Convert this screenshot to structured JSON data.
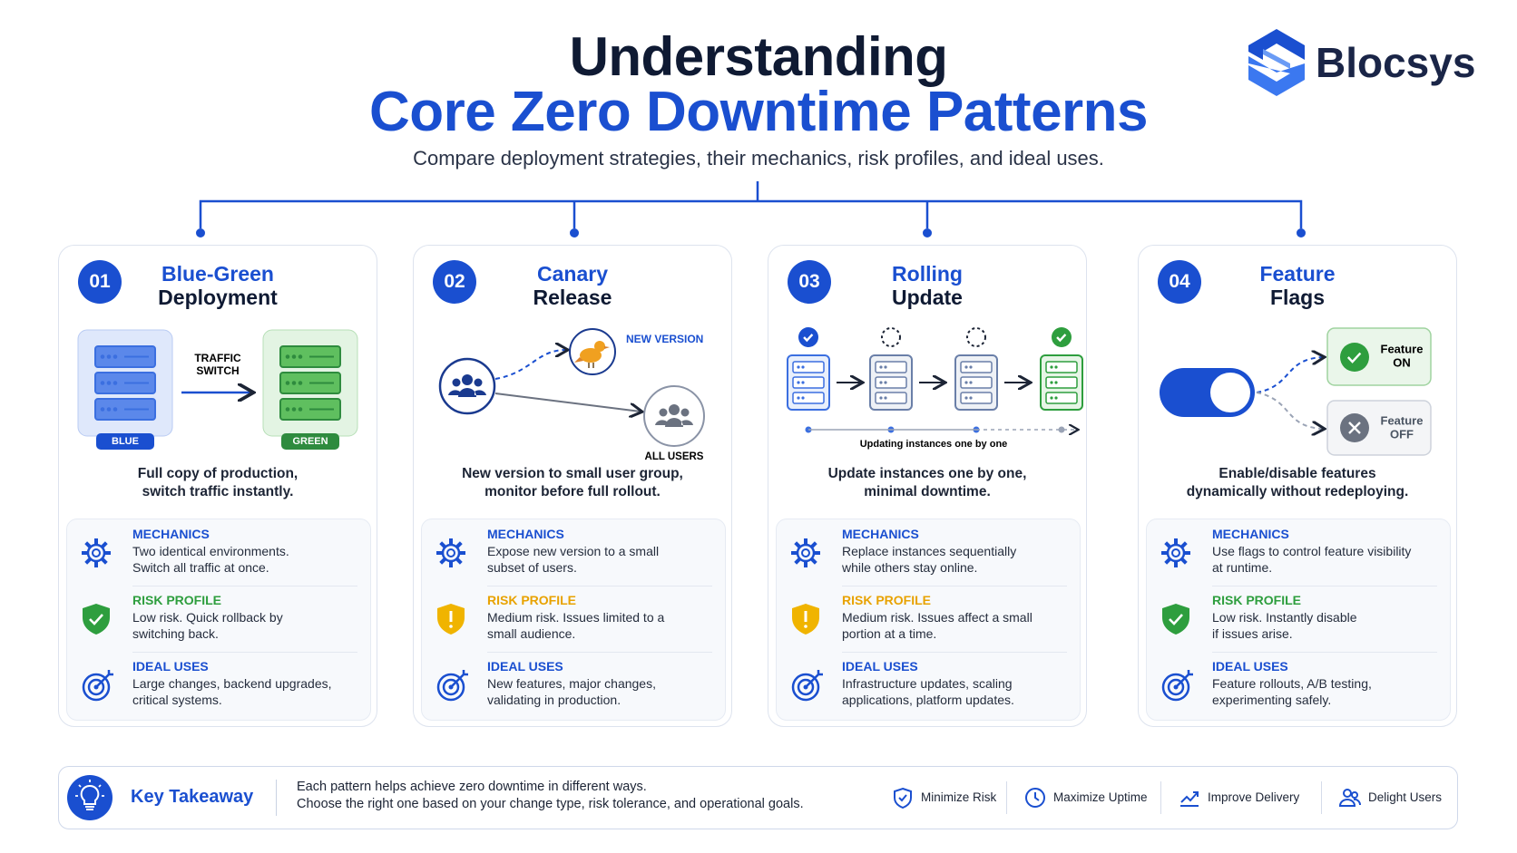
{
  "header": {
    "title_line1": "Understanding",
    "title_line2": "Core Zero Downtime Patterns",
    "subtitle": "Compare deployment strategies, their mechanics, risk profiles, and ideal uses."
  },
  "logo": {
    "text": "Blocsys"
  },
  "patterns": [
    {
      "number": "01",
      "title_line1": "Blue-Green",
      "title_line2": "Deployment",
      "labels": [
        "TRAFFIC",
        "SWITCH",
        "BLUE",
        "GREEN"
      ],
      "summary": [
        "Full copy of production,",
        "switch traffic instantly."
      ],
      "sections": [
        {
          "heading": "MECHANICS",
          "color": "#1a4fd0",
          "lines": [
            "Two identical environments.",
            "Switch all traffic at once."
          ]
        },
        {
          "heading": "RISK PROFILE",
          "color": "#2e9e3e",
          "lines": [
            "Low risk. Quick rollback by",
            "switching back."
          ]
        },
        {
          "heading": "IDEAL USES",
          "color": "#1a4fd0",
          "lines": [
            "Large changes, backend upgrades,",
            "critical systems."
          ]
        }
      ]
    },
    {
      "number": "02",
      "title_line1": "Canary",
      "title_line2": "Release",
      "labels": [
        "NEW VERSION",
        "ALL USERS"
      ],
      "summary": [
        "New version to small user group,",
        "monitor before full rollout."
      ],
      "sections": [
        {
          "heading": "MECHANICS",
          "color": "#1a4fd0",
          "lines": [
            "Expose new version to a small",
            "subset of users."
          ]
        },
        {
          "heading": "RISK PROFILE",
          "color": "#e8a200",
          "lines": [
            "Medium risk. Issues limited to a",
            "small audience."
          ]
        },
        {
          "heading": "IDEAL USES",
          "color": "#1a4fd0",
          "lines": [
            "New features, major changes,",
            "validating in production."
          ]
        }
      ]
    },
    {
      "number": "03",
      "title_line1": "Rolling",
      "title_line2": "Update",
      "labels": [
        "Updating instances one by one"
      ],
      "summary": [
        "Update instances one by one,",
        "minimal downtime."
      ],
      "sections": [
        {
          "heading": "MECHANICS",
          "color": "#1a4fd0",
          "lines": [
            "Replace instances sequentially",
            "while others stay online."
          ]
        },
        {
          "heading": "RISK PROFILE",
          "color": "#e8a200",
          "lines": [
            "Medium risk. Issues affect a small",
            "portion at a time."
          ]
        },
        {
          "heading": "IDEAL USES",
          "color": "#1a4fd0",
          "lines": [
            "Infrastructure updates, scaling",
            "applications, platform updates."
          ]
        }
      ]
    },
    {
      "number": "04",
      "title_line1": "Feature",
      "title_line2": "Flags",
      "labels": [
        "Feature",
        "ON",
        "Feature",
        "OFF"
      ],
      "summary": [
        "Enable/disable features",
        "dynamically without redeploying."
      ],
      "sections": [
        {
          "heading": "MECHANICS",
          "color": "#1a4fd0",
          "lines": [
            "Use flags to control feature visibility",
            "at runtime."
          ]
        },
        {
          "heading": "RISK PROFILE",
          "color": "#2e9e3e",
          "lines": [
            "Low risk. Instantly disable",
            "if issues arise."
          ]
        },
        {
          "heading": "IDEAL USES",
          "color": "#1a4fd0",
          "lines": [
            "Feature rollouts, A/B testing,",
            "experimenting safely."
          ]
        }
      ]
    }
  ],
  "footer": {
    "title": "Key Takeaway",
    "lines": [
      "Each pattern helps achieve zero downtime in different ways.",
      "Choose the right one based on your change type, risk tolerance, and operational goals."
    ],
    "badges": [
      "Minimize Risk",
      "Maximize Uptime",
      "Improve Delivery",
      "Delight Users"
    ]
  }
}
